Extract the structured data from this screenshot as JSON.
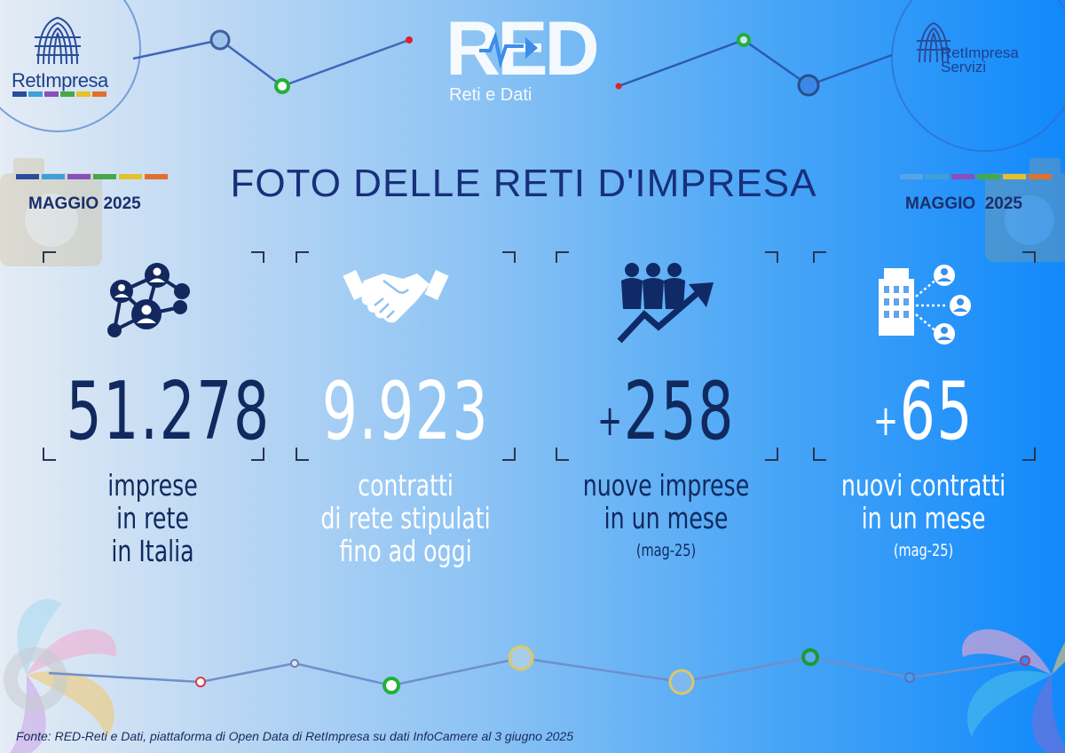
{
  "logos": {
    "left_name": "RetImpresa",
    "red_mark": "RED",
    "red_subtitle": "Reti e Dati",
    "right_name": "RetImpresa Servizi"
  },
  "header": {
    "title": "FOTO DELLE RETI D'IMPRESA",
    "month_left": "MAGGIO 2025",
    "month_right": "MAGGIO  2025"
  },
  "stats": [
    {
      "icon": "network-people-icon",
      "value": "51.278",
      "label_lines": [
        "imprese",
        "in rete",
        "in Italia"
      ]
    },
    {
      "icon": "handshake-icon",
      "value": "9.923",
      "label_lines": [
        "contratti",
        "di rete stipulati",
        "fino ad oggi"
      ]
    },
    {
      "icon": "growth-people-icon",
      "value_prefix": "+",
      "value": "258",
      "label_lines": [
        "nuove imprese",
        "in un mese"
      ],
      "note": "(mag-25)"
    },
    {
      "icon": "company-network-icon",
      "value_prefix": "+",
      "value": "65",
      "label_lines": [
        "nuovi contratti",
        "in un mese"
      ],
      "note": "(mag-25)"
    }
  ],
  "colors": {
    "dark_text": "#10295e",
    "title": "#17307a",
    "accent_green": "#27b43c",
    "accent_red": "#e0212e"
  },
  "footer": {
    "source": "Fonte: RED-Reti e Dati, piattaforma di Open Data di RetImpresa su dati InfoCamere al 3 giugno 2025"
  }
}
